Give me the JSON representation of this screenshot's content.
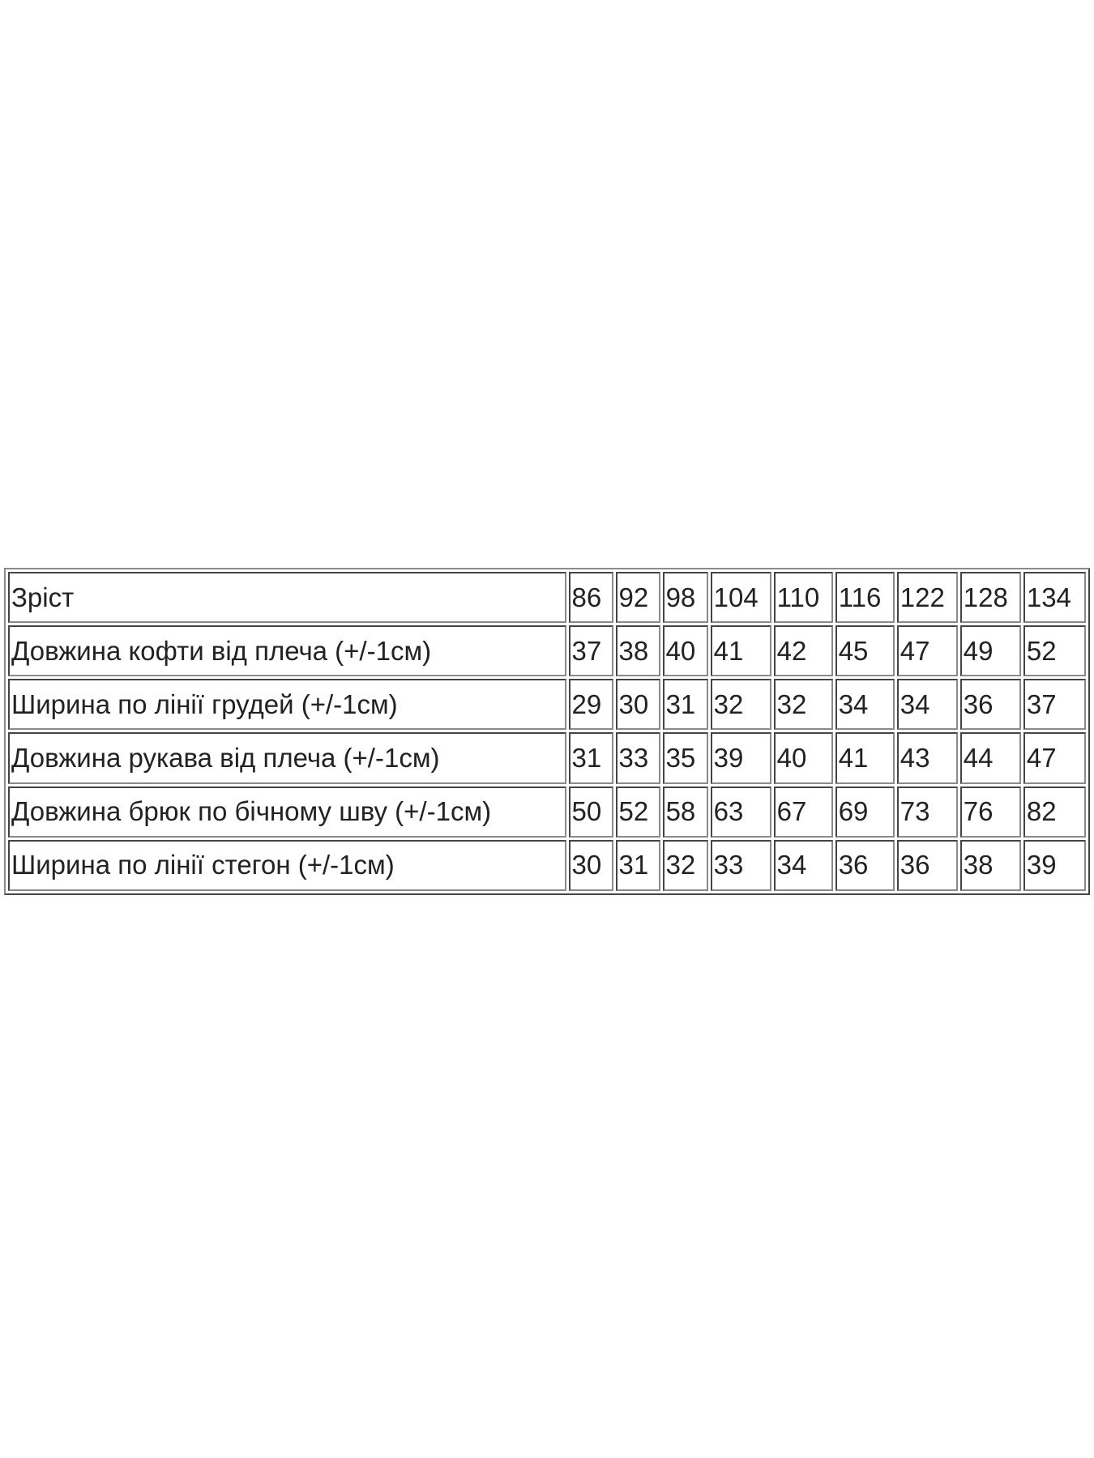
{
  "table": {
    "rows": [
      [
        "Зріст",
        86,
        92,
        98,
        104,
        110,
        116,
        122,
        128,
        134
      ],
      [
        "Довжина кофти від плеча (+/-1см)",
        37,
        38,
        40,
        41,
        42,
        45,
        47,
        49,
        52
      ],
      [
        "Ширина по лінії грудей (+/-1см)",
        29,
        30,
        31,
        32,
        32,
        34,
        34,
        36,
        37
      ],
      [
        "Довжина рукава від плеча (+/-1см)",
        31,
        33,
        35,
        39,
        40,
        41,
        43,
        44,
        47
      ],
      [
        "Довжина брюк по бічному шву (+/-1см)",
        50,
        52,
        58,
        63,
        67,
        69,
        73,
        76,
        82
      ],
      [
        "Ширина по лінії стегон (+/-1см)",
        30,
        31,
        32,
        33,
        34,
        36,
        36,
        38,
        39
      ]
    ]
  }
}
